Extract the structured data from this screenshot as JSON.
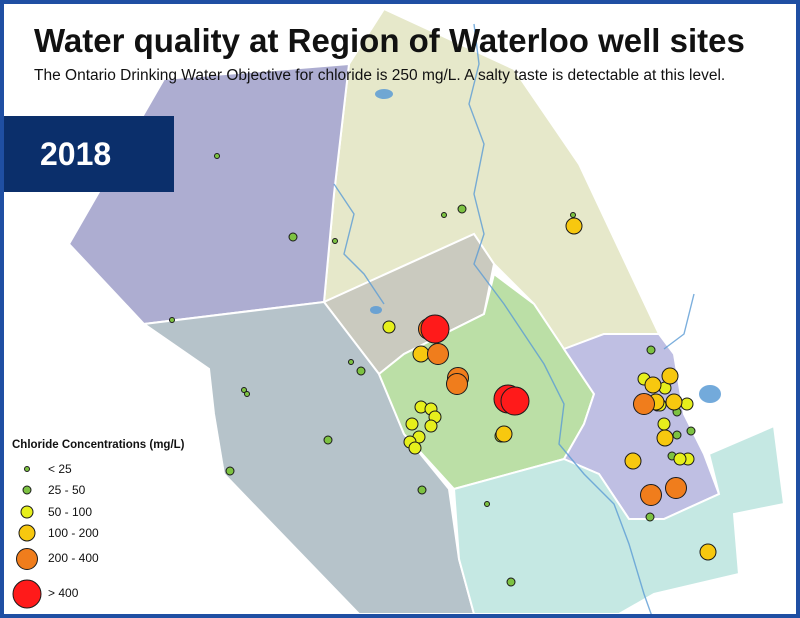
{
  "title": "Water quality at Region of Waterloo well sites",
  "subtitle": "The Ontario Drinking Water Objective for chloride is 250 mg/L. A salty taste is detectable at this level.",
  "year": "2018",
  "legend": {
    "title": "Chloride Concentrations (mg/L)",
    "classes": [
      {
        "label": "< 25",
        "color": "#7dc242"
      },
      {
        "label": "25 - 50",
        "color": "#7dc242"
      },
      {
        "label": "50 - 100",
        "color": "#e6ef1c"
      },
      {
        "label": "100 - 200",
        "color": "#f7c80f"
      },
      {
        "label": "200 - 400",
        "color": "#f07d1c"
      },
      {
        "label": "> 400",
        "color": "#ff1a1a"
      }
    ]
  },
  "colors": {
    "frame": "#1f4fa3",
    "year_box": "#0b2f6b",
    "north_west_township": "#a4a4cc",
    "north_east_township": "#e3e6c4",
    "south_west_township": "#aebcc4",
    "south_east_township": "#bfe6e0",
    "central_city": "#c4c4b8",
    "middle_city": "#b4dc9c",
    "east_city": "#b8b8e0",
    "water": "#5b9bd5"
  }
}
